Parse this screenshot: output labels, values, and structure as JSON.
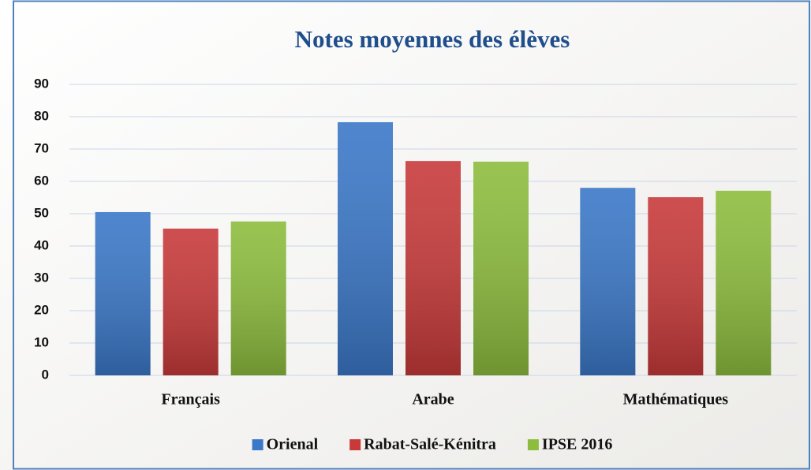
{
  "chart_data": {
    "type": "bar",
    "title": "Notes moyennes des élèves",
    "categories": [
      "Français",
      "Arabe",
      "Mathématiques"
    ],
    "series": [
      {
        "name": "Orienal",
        "color": "#3b78c8",
        "values": [
          50.5,
          78.3,
          58
        ]
      },
      {
        "name": "Rabat-Salé-Kénitra",
        "color": "#c83a3a",
        "values": [
          45.4,
          66.3,
          55.1
        ]
      },
      {
        "name": "IPSE 2016",
        "color": "#8dbd3e",
        "values": [
          47.6,
          66.1,
          57.1
        ]
      }
    ],
    "ylim": [
      0,
      90
    ],
    "yticks": [
      0,
      10,
      20,
      30,
      40,
      50,
      60,
      70,
      80,
      90
    ],
    "grid": true,
    "legend": "bottom"
  }
}
